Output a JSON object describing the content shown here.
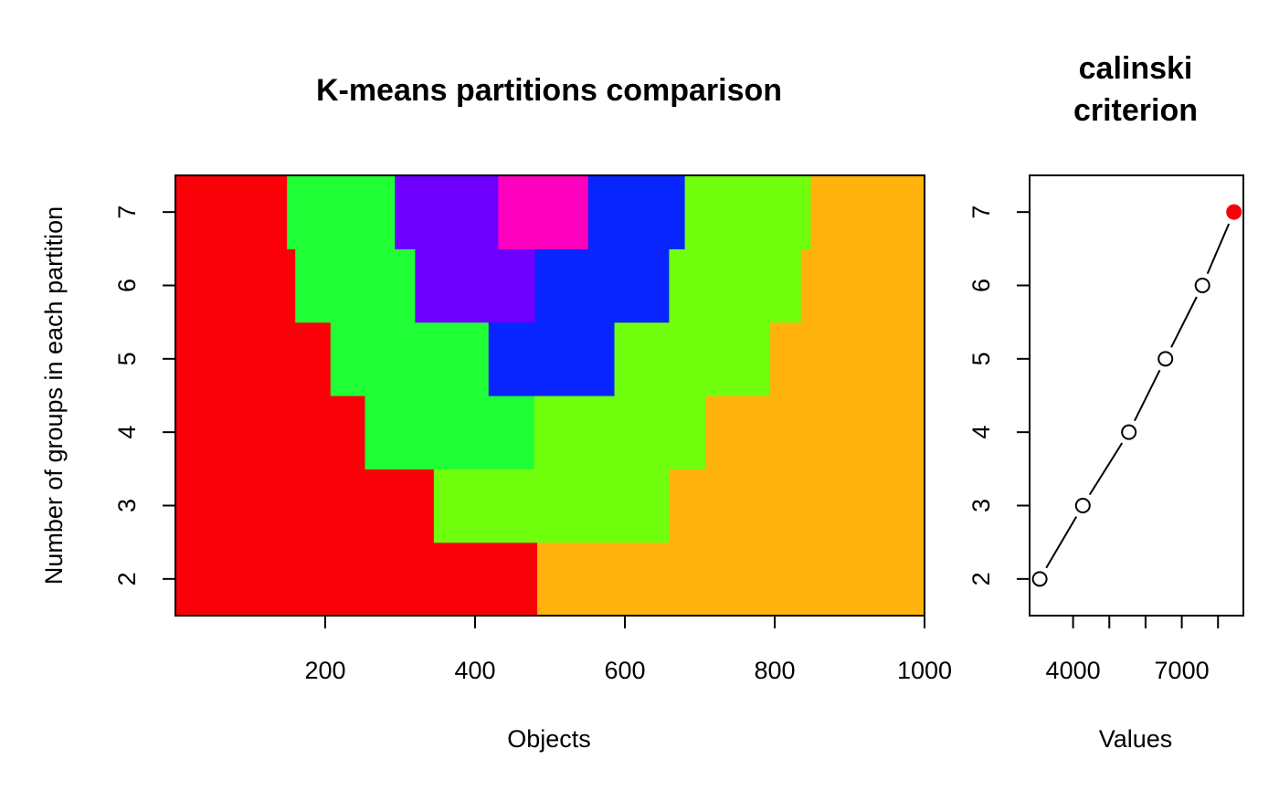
{
  "chart_data": [
    {
      "type": "heatmap",
      "title": "K-means partitions comparison",
      "xlabel": "Objects",
      "ylabel": "Number of groups in each partition",
      "xlim": [
        0,
        1000
      ],
      "ylim": [
        1.5,
        7.5
      ],
      "x_ticks": [
        200,
        400,
        600,
        800,
        1000
      ],
      "y_ticks": [
        2,
        3,
        4,
        5,
        6,
        7
      ],
      "grid": false,
      "legend": "none",
      "rows": [
        {
          "k": 2,
          "segments": [
            {
              "from": 0,
              "to": 483,
              "color": "#FA0008"
            },
            {
              "from": 483,
              "to": 1000,
              "color": "#FFB30C"
            }
          ]
        },
        {
          "k": 3,
          "segments": [
            {
              "from": 0,
              "to": 345,
              "color": "#FA0008"
            },
            {
              "from": 345,
              "to": 659,
              "color": "#70FF0C"
            },
            {
              "from": 659,
              "to": 1000,
              "color": "#FFB30C"
            }
          ]
        },
        {
          "k": 4,
          "segments": [
            {
              "from": 0,
              "to": 253,
              "color": "#FA0008"
            },
            {
              "from": 253,
              "to": 479,
              "color": "#20FF36"
            },
            {
              "from": 479,
              "to": 708,
              "color": "#70FF0C"
            },
            {
              "from": 708,
              "to": 1000,
              "color": "#FFB30C"
            }
          ]
        },
        {
          "k": 5,
          "segments": [
            {
              "from": 0,
              "to": 207,
              "color": "#FA0008"
            },
            {
              "from": 207,
              "to": 418,
              "color": "#20FF36"
            },
            {
              "from": 418,
              "to": 586,
              "color": "#0825FF"
            },
            {
              "from": 586,
              "to": 794,
              "color": "#70FF0C"
            },
            {
              "from": 794,
              "to": 1000,
              "color": "#FFB30C"
            }
          ]
        },
        {
          "k": 6,
          "segments": [
            {
              "from": 0,
              "to": 160,
              "color": "#FA0008"
            },
            {
              "from": 160,
              "to": 320,
              "color": "#20FF36"
            },
            {
              "from": 320,
              "to": 480,
              "color": "#6E00FF"
            },
            {
              "from": 480,
              "to": 659,
              "color": "#0825FF"
            },
            {
              "from": 659,
              "to": 835,
              "color": "#70FF0C"
            },
            {
              "from": 835,
              "to": 1000,
              "color": "#FFB30C"
            }
          ]
        },
        {
          "k": 7,
          "segments": [
            {
              "from": 0,
              "to": 149,
              "color": "#FA0008"
            },
            {
              "from": 149,
              "to": 293,
              "color": "#20FF36"
            },
            {
              "from": 293,
              "to": 431,
              "color": "#6E00FF"
            },
            {
              "from": 431,
              "to": 551,
              "color": "#FF00BE"
            },
            {
              "from": 551,
              "to": 680,
              "color": "#0825FF"
            },
            {
              "from": 680,
              "to": 848,
              "color": "#70FF0C"
            },
            {
              "from": 848,
              "to": 1000,
              "color": "#FFB30C"
            }
          ]
        }
      ]
    },
    {
      "type": "line",
      "title": [
        "calinski",
        "criterion"
      ],
      "xlabel": "Values",
      "ylabel": "",
      "xlim": [
        2800,
        8700
      ],
      "ylim": [
        1.5,
        7.5
      ],
      "x_ticks": [
        4000,
        5000,
        6000,
        7000,
        8000
      ],
      "x_tick_labels": [
        "4000",
        "",
        "",
        "7000",
        ""
      ],
      "y_ticks": [
        2,
        3,
        4,
        5,
        6,
        7
      ],
      "series": [
        {
          "x": [
            3080,
            4270,
            5540,
            6550,
            7570,
            8440
          ],
          "y": [
            2,
            3,
            4,
            5,
            6,
            7
          ]
        }
      ],
      "highlight": {
        "x": 8440,
        "y": 7,
        "color": "#FA0008"
      },
      "marker_fill": "#FFFFFF",
      "line_color": "#000000"
    }
  ]
}
